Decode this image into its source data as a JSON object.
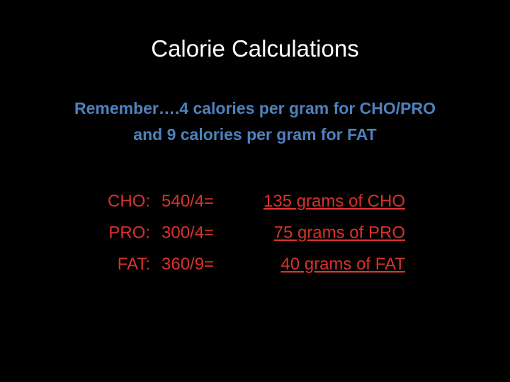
{
  "title": "Calorie Calculations",
  "reminder": [
    "Remember….4 calories per gram for CHO/PRO",
    "and 9 calories per gram for FAT"
  ],
  "rows": [
    {
      "label": "CHO:",
      "calculation": "540/4=",
      "result": "135 grams of CHO"
    },
    {
      "label": "PRO:",
      "calculation": "300/4=",
      "result": "75 grams of PRO"
    },
    {
      "label": "FAT:",
      "calculation": "360/9=",
      "result": "40 grams of FAT"
    }
  ]
}
